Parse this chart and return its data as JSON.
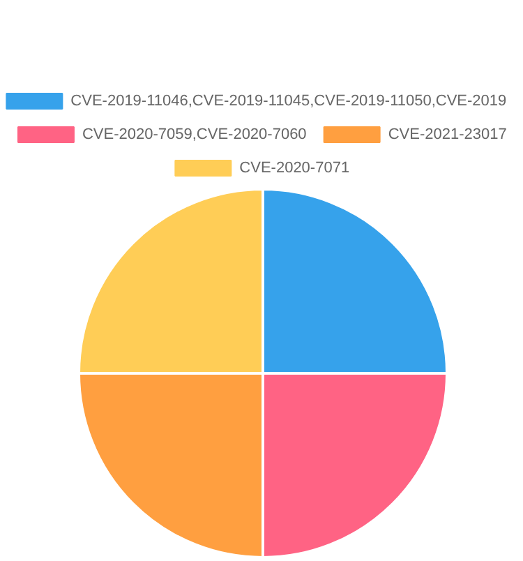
{
  "chart_data": {
    "type": "pie",
    "legend": "top",
    "categories": [
      "CVE-2019-11046,CVE-2019-11045,CVE-2019-11050,CVE-2019",
      "CVE-2020-7059,CVE-2020-7060",
      "CVE-2021-23017",
      "CVE-2020-7071"
    ],
    "values": [
      25,
      25,
      25,
      25
    ],
    "colors": [
      "#36a2eb",
      "#ff6384",
      "#ff9f40",
      "#ffcd56"
    ]
  }
}
